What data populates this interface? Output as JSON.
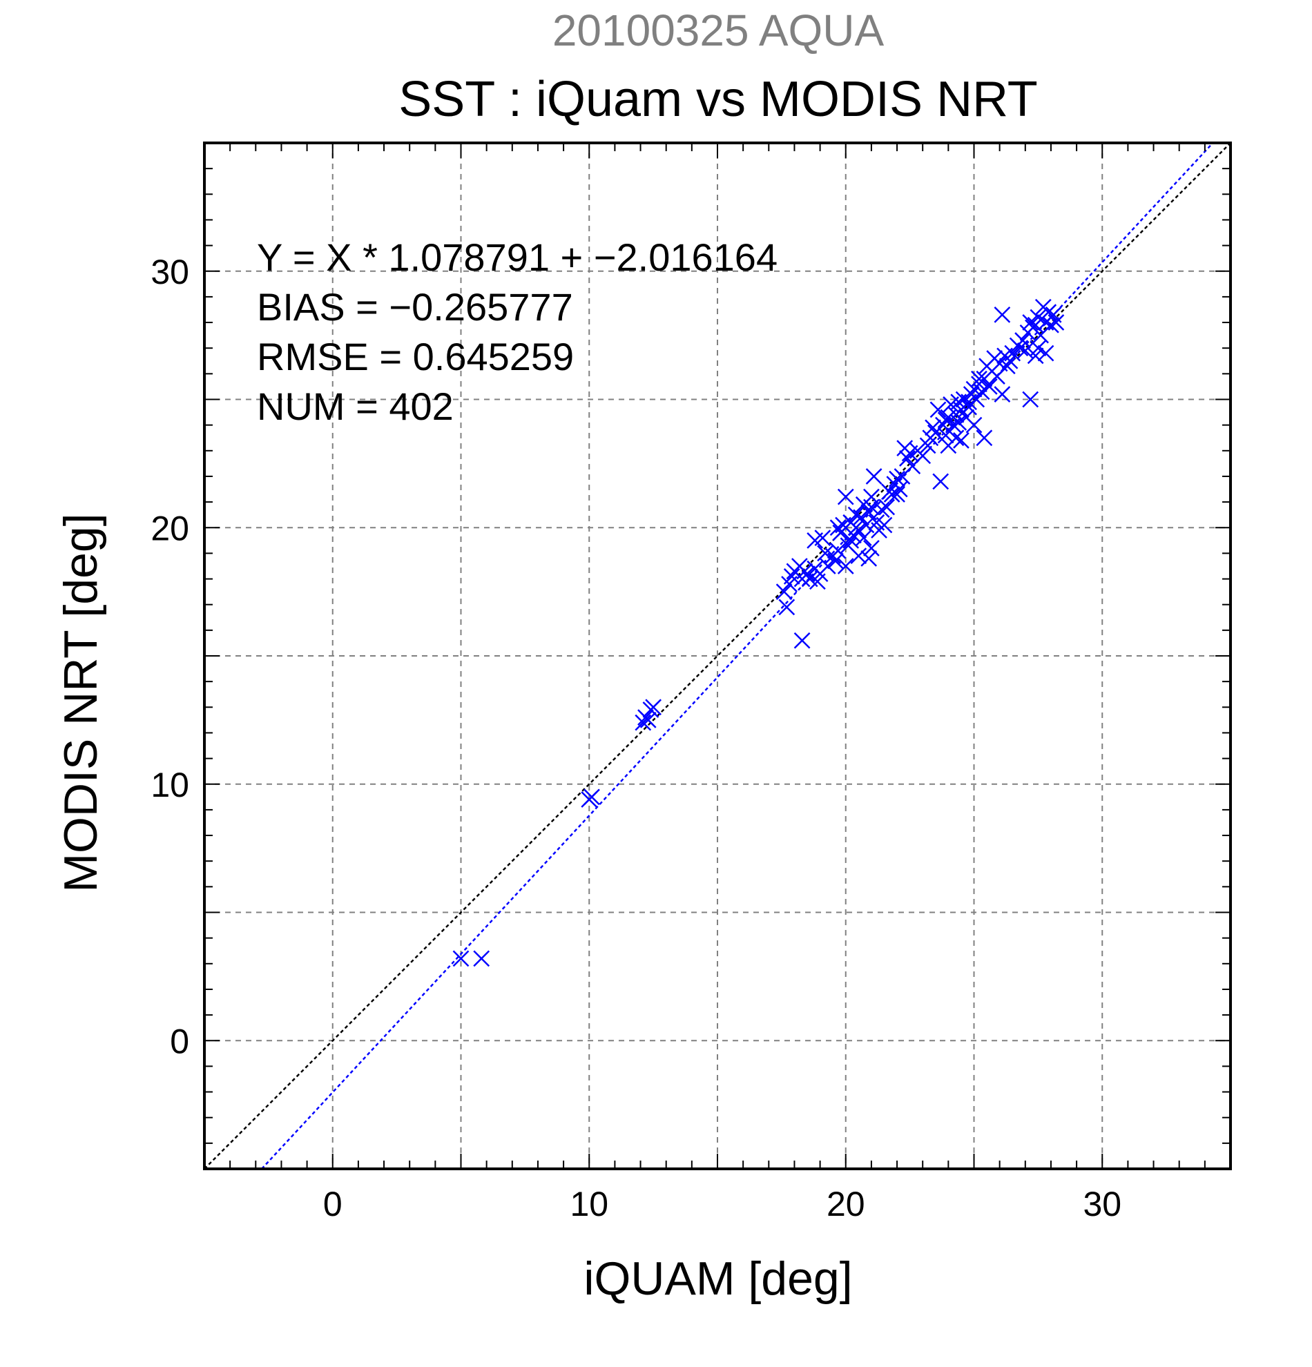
{
  "chart_data": {
    "type": "scatter",
    "suptitle": "20100325 AQUA",
    "title": "SST : iQuam vs MODIS NRT",
    "xlabel": "iQUAM [deg]",
    "ylabel": "MODIS NRT [deg]",
    "xlim": [
      -5,
      35
    ],
    "ylim": [
      -5,
      35
    ],
    "xticks": [
      "0",
      "10",
      "20",
      "30"
    ],
    "yticks": [
      "0",
      "10",
      "20",
      "30"
    ],
    "grid": true,
    "stats": [
      "Y = X * 1.078791 + −2.016164",
      "BIAS = −0.265777",
      "RMSE = 0.645259",
      "NUM = 402"
    ],
    "colors": {
      "points": "#0000ff",
      "fit_line": "#0000ff",
      "identity_line": "#000000",
      "grid": "#808080"
    },
    "identity_line": {
      "slope": 1,
      "intercept": 0
    },
    "fit_line": {
      "slope": 1.078791,
      "intercept": -2.016164
    },
    "points": [
      [
        5.0,
        3.2
      ],
      [
        5.8,
        3.2
      ],
      [
        10.0,
        9.4
      ],
      [
        10.1,
        9.5
      ],
      [
        12.1,
        12.4
      ],
      [
        12.2,
        12.6
      ],
      [
        12.3,
        12.5
      ],
      [
        12.5,
        13.0
      ],
      [
        12.4,
        12.9
      ],
      [
        17.6,
        17.5
      ],
      [
        17.8,
        17.8
      ],
      [
        17.9,
        18.1
      ],
      [
        17.7,
        16.9
      ],
      [
        18.0,
        18.3
      ],
      [
        18.3,
        18.0
      ],
      [
        18.4,
        18.3
      ],
      [
        18.6,
        18.0
      ],
      [
        18.8,
        18.4
      ],
      [
        18.9,
        17.9
      ],
      [
        19.0,
        18.2
      ],
      [
        18.8,
        19.5
      ],
      [
        19.1,
        19.6
      ],
      [
        19.3,
        18.5
      ],
      [
        19.5,
        18.9
      ],
      [
        19.6,
        18.7
      ],
      [
        19.7,
        19.1
      ],
      [
        19.8,
        19.8
      ],
      [
        19.9,
        20.1
      ],
      [
        20.0,
        21.2
      ],
      [
        20.0,
        18.5
      ],
      [
        20.1,
        19.3
      ],
      [
        20.2,
        20.2
      ],
      [
        20.3,
        19.7
      ],
      [
        20.4,
        20.5
      ],
      [
        20.5,
        19.9
      ],
      [
        20.5,
        18.9
      ],
      [
        20.6,
        20.4
      ],
      [
        20.7,
        20.9
      ],
      [
        20.7,
        19.6
      ],
      [
        20.8,
        20.1
      ],
      [
        20.9,
        20.6
      ],
      [
        21.0,
        19.2
      ],
      [
        21.0,
        20.8
      ],
      [
        21.1,
        22.0
      ],
      [
        21.2,
        20.2
      ],
      [
        21.3,
        19.9
      ],
      [
        21.4,
        20.7
      ],
      [
        21.5,
        20.1
      ],
      [
        21.6,
        20.8
      ],
      [
        20.9,
        18.8
      ],
      [
        18.3,
        15.6
      ],
      [
        21.8,
        21.3
      ],
      [
        21.9,
        21.7
      ],
      [
        22.0,
        21.9
      ],
      [
        22.1,
        21.5
      ],
      [
        22.2,
        22.0
      ],
      [
        22.3,
        23.1
      ],
      [
        22.4,
        22.7
      ],
      [
        22.5,
        22.9
      ],
      [
        22.0,
        21.3
      ],
      [
        22.8,
        23.0
      ],
      [
        23.0,
        22.8
      ],
      [
        23.2,
        23.2
      ],
      [
        23.3,
        23.5
      ],
      [
        23.5,
        23.7
      ],
      [
        23.6,
        24.6
      ],
      [
        23.7,
        21.8
      ],
      [
        23.8,
        24.0
      ],
      [
        23.9,
        23.6
      ],
      [
        24.0,
        24.3
      ],
      [
        24.0,
        23.2
      ],
      [
        24.1,
        24.8
      ],
      [
        24.2,
        24.0
      ],
      [
        24.3,
        23.5
      ],
      [
        24.3,
        24.4
      ],
      [
        24.4,
        24.1
      ],
      [
        24.5,
        24.6
      ],
      [
        24.5,
        23.4
      ],
      [
        24.6,
        25.0
      ],
      [
        24.7,
        24.3
      ],
      [
        24.8,
        24.7
      ],
      [
        24.9,
        25.2
      ],
      [
        25.0,
        24.0
      ],
      [
        25.0,
        25.4
      ],
      [
        25.1,
        25.0
      ],
      [
        25.2,
        25.6
      ],
      [
        25.3,
        25.3
      ],
      [
        25.4,
        23.5
      ],
      [
        25.4,
        25.8
      ],
      [
        25.5,
        26.3
      ],
      [
        25.6,
        25.5
      ],
      [
        25.7,
        26.1
      ],
      [
        25.8,
        26.6
      ],
      [
        25.9,
        25.9
      ],
      [
        26.0,
        26.4
      ],
      [
        26.1,
        25.2
      ],
      [
        26.2,
        26.7
      ],
      [
        26.4,
        26.5
      ],
      [
        26.5,
        26.8
      ],
      [
        26.7,
        27.1
      ],
      [
        26.9,
        27.3
      ],
      [
        27.0,
        26.9
      ],
      [
        27.1,
        27.6
      ],
      [
        27.2,
        28.0
      ],
      [
        27.2,
        25.0
      ],
      [
        27.3,
        27.8
      ],
      [
        27.4,
        26.7
      ],
      [
        27.5,
        28.2
      ],
      [
        27.6,
        27.5
      ],
      [
        27.7,
        28.6
      ],
      [
        27.8,
        28.0
      ],
      [
        27.9,
        28.4
      ],
      [
        28.0,
        27.9
      ],
      [
        28.1,
        28.3
      ],
      [
        28.2,
        28.0
      ],
      [
        27.5,
        27.0
      ],
      [
        26.1,
        28.3
      ],
      [
        27.8,
        26.8
      ],
      [
        26.8,
        27.0
      ],
      [
        24.8,
        24.9
      ],
      [
        23.4,
        23.9
      ],
      [
        21.7,
        21.4
      ],
      [
        20.4,
        20.0
      ],
      [
        19.2,
        19.0
      ],
      [
        18.5,
        18.2
      ],
      [
        25.2,
        25.8
      ],
      [
        26.3,
        26.3
      ],
      [
        27.4,
        27.9
      ],
      [
        24.4,
        24.9
      ],
      [
        23.9,
        24.2
      ],
      [
        22.6,
        22.4
      ],
      [
        21.0,
        21.2
      ],
      [
        20.2,
        19.5
      ],
      [
        19.7,
        20.0
      ],
      [
        18.2,
        18.5
      ]
    ]
  }
}
